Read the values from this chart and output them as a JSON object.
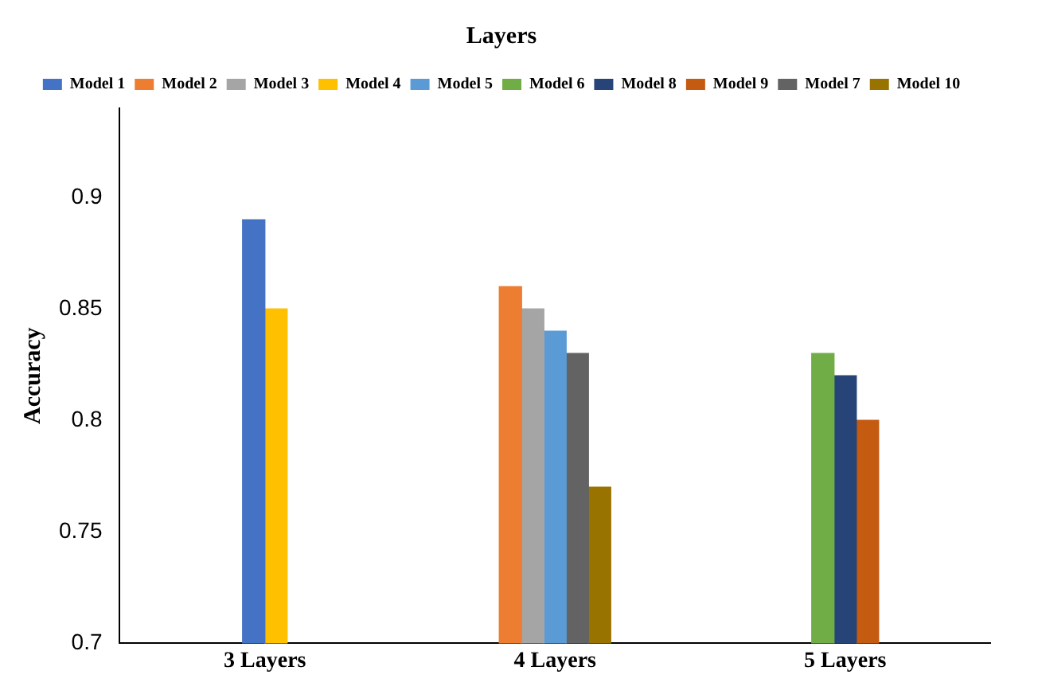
{
  "chart_data": {
    "type": "bar",
    "title": "Layers",
    "ylabel": "Accuracy",
    "categories": [
      "3 Layers",
      "4 Layers",
      "5 Layers"
    ],
    "series": [
      {
        "name": "Model 1",
        "color": "#4472c4",
        "values": [
          0.89,
          null,
          null
        ]
      },
      {
        "name": "Model 2",
        "color": "#ed7d31",
        "values": [
          null,
          0.86,
          null
        ]
      },
      {
        "name": "Model 3",
        "color": "#a5a5a5",
        "values": [
          null,
          0.85,
          null
        ]
      },
      {
        "name": "Model 4",
        "color": "#ffc000",
        "values": [
          0.85,
          null,
          null
        ]
      },
      {
        "name": "Model 5",
        "color": "#5b9bd5",
        "values": [
          null,
          0.84,
          null
        ]
      },
      {
        "name": "Model 6",
        "color": "#70ad47",
        "values": [
          null,
          null,
          0.83
        ]
      },
      {
        "name": "Model 8",
        "color": "#264478",
        "values": [
          null,
          null,
          0.82
        ]
      },
      {
        "name": "Model 9",
        "color": "#c55a11",
        "values": [
          null,
          null,
          0.8
        ]
      },
      {
        "name": "Model 7",
        "color": "#636363",
        "values": [
          null,
          0.83,
          null
        ]
      },
      {
        "name": "Model 10",
        "color": "#997300",
        "values": [
          null,
          0.77,
          null
        ]
      }
    ],
    "ylim": [
      0.7,
      0.94
    ],
    "yticks": [
      0.7,
      0.75,
      0.8,
      0.85,
      0.9
    ],
    "grid": false,
    "legend": "top"
  }
}
